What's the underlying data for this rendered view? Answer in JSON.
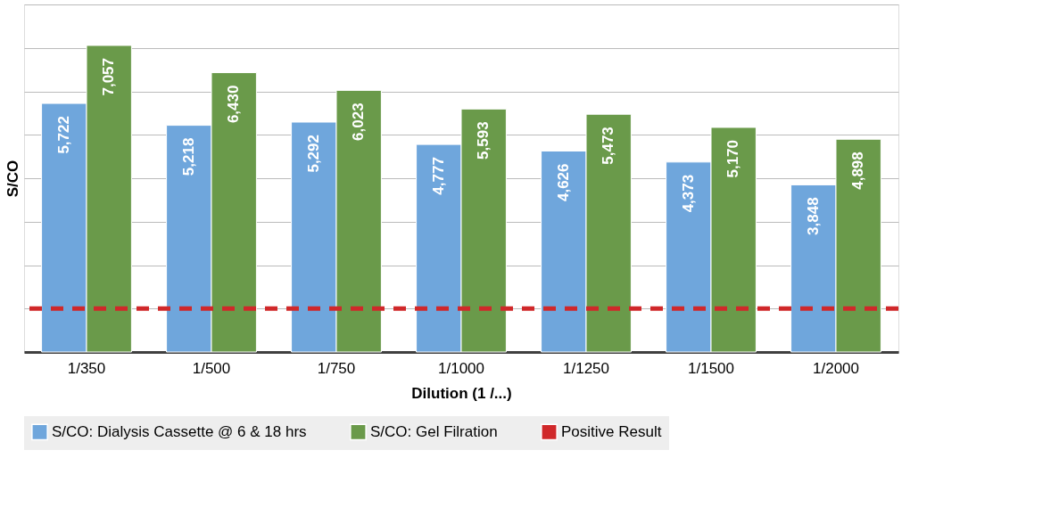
{
  "chart_data": {
    "type": "bar",
    "xlabel": "Dilution (1 /...)",
    "ylabel": "S/CO",
    "categories": [
      "1/350",
      "1/500",
      "1/750",
      "1/1000",
      "1/1250",
      "1/1500",
      "1/2000"
    ],
    "series": [
      {
        "name": "S/CO:  Dialysis Cassette @ 6 & 18 hrs",
        "color": "#6fa6dc",
        "values": [
          5722,
          5218,
          5292,
          4777,
          4626,
          4373,
          3848
        ],
        "value_labels": [
          "5,722",
          "5,218",
          "5,292",
          "4,777",
          "4,626",
          "4,373",
          "3,848"
        ]
      },
      {
        "name": "S/CO:  Gel Filration",
        "color": "#6a9a4a",
        "values": [
          7057,
          6430,
          6023,
          5593,
          5473,
          5170,
          4898
        ],
        "value_labels": [
          "7,057",
          "6,430",
          "6,023",
          "5,593",
          "5,473",
          "5,170",
          "4,898"
        ]
      }
    ],
    "tick_labels": "x",
    "grid": "y",
    "legend": "bottom",
    "ref_lines": [
      {
        "axis": "y",
        "value": 1000,
        "label": "Positive Result",
        "color": "#d0282a",
        "line_style": "dashed"
      }
    ]
  }
}
